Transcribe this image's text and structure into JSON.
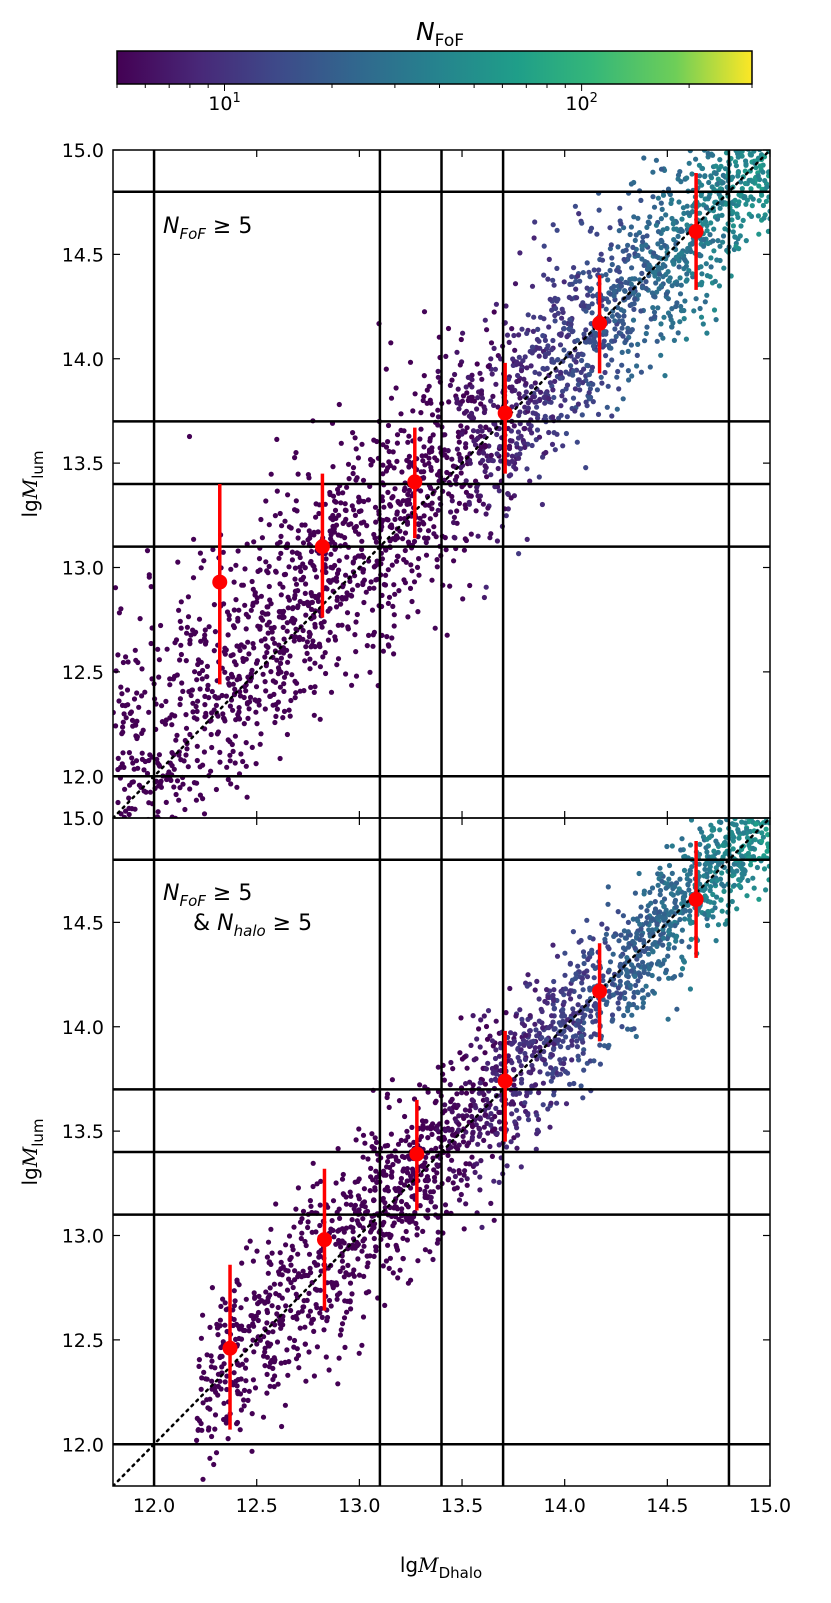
{
  "colorbar": {
    "label_main": "N",
    "label_sub": "FoF",
    "scale": "log",
    "range": [
      5,
      300
    ],
    "tick_values": [
      10,
      100
    ],
    "tick_labels": [
      {
        "base": "10",
        "exp": "1"
      },
      {
        "base": "10",
        "exp": "2"
      }
    ],
    "colormap": "viridis"
  },
  "chart_data": [
    {
      "type": "scatter",
      "panel": "top",
      "annotation_lines": [
        {
          "main": "N",
          "sub": "FoF",
          "rest": " ≥ 5"
        }
      ],
      "xlim": [
        11.8,
        15.0
      ],
      "ylim": [
        11.8,
        15.0
      ],
      "xticks": [
        "12.0",
        "12.5",
        "13.0",
        "13.5",
        "14.0",
        "14.5",
        "15.0"
      ],
      "yticks": [
        "12.0",
        "12.5",
        "13.0",
        "13.5",
        "14.0",
        "14.5",
        "15.0"
      ],
      "show_xtick_labels": false,
      "ylabel": {
        "prefix": "lg",
        "symbol": "M",
        "sub": "lum"
      },
      "vertical_lines": [
        12.0,
        13.1,
        13.4,
        13.7,
        14.8
      ],
      "horizontal_lines": [
        12.0,
        13.1,
        13.4,
        13.7,
        14.8
      ],
      "one_to_one_line": true,
      "cloud": {
        "x_min": 11.8,
        "x_max": 15.0,
        "offset": 0.15,
        "scatter": 0.3
      },
      "bin_medians": {
        "x": [
          12.32,
          12.82,
          13.27,
          13.71,
          14.17,
          14.64
        ],
        "y": [
          12.93,
          13.1,
          13.41,
          13.74,
          14.17,
          14.61
        ],
        "y_low": [
          12.44,
          12.76,
          13.14,
          13.45,
          13.93,
          14.33
        ],
        "y_high": [
          13.4,
          13.45,
          13.67,
          13.98,
          14.4,
          14.89
        ]
      },
      "median_color": "#ff0000"
    },
    {
      "type": "scatter",
      "panel": "bottom",
      "annotation_lines": [
        {
          "main": "N",
          "sub": "FoF",
          "rest": " ≥ 5"
        },
        {
          "pre": "& ",
          "main": "N",
          "sub": "halo",
          "rest": " ≥ 5"
        }
      ],
      "xlim": [
        11.8,
        15.0
      ],
      "ylim": [
        11.8,
        15.0
      ],
      "xticks": [
        "12.0",
        "12.5",
        "13.0",
        "13.5",
        "14.0",
        "14.5",
        "15.0"
      ],
      "yticks": [
        "12.0",
        "12.5",
        "13.0",
        "13.5",
        "14.0",
        "14.5",
        "15.0"
      ],
      "show_xtick_labels": true,
      "xlabel": {
        "prefix": "lg",
        "symbol": "M",
        "sub": "Dhalo"
      },
      "ylabel": {
        "prefix": "lg",
        "symbol": "M",
        "sub": "lum"
      },
      "vertical_lines": [
        12.0,
        13.1,
        13.4,
        13.7,
        14.8
      ],
      "horizontal_lines": [
        12.0,
        13.1,
        13.4,
        13.7,
        14.8
      ],
      "one_to_one_line": true,
      "cloud": {
        "x_min": 12.2,
        "x_max": 15.0,
        "offset": 0.05,
        "scatter": 0.22
      },
      "bin_medians": {
        "x": [
          12.37,
          12.83,
          13.28,
          13.71,
          14.17,
          14.64
        ],
        "y": [
          12.46,
          12.98,
          13.39,
          13.74,
          14.17,
          14.61
        ],
        "y_low": [
          12.07,
          12.64,
          13.12,
          13.45,
          13.93,
          14.33
        ],
        "y_high": [
          12.86,
          13.32,
          13.65,
          13.98,
          14.4,
          14.89
        ]
      },
      "median_color": "#ff0000"
    }
  ]
}
